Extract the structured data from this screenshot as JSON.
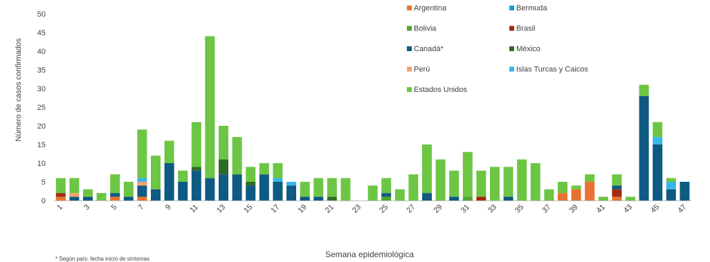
{
  "chart_data": {
    "type": "bar",
    "stacked": true,
    "title": "",
    "xlabel": "Semana epidemiológica",
    "ylabel": "Número de casos confirmados",
    "ylim": [
      0,
      50
    ],
    "yticks": [
      0,
      5,
      10,
      15,
      20,
      25,
      30,
      35,
      40,
      45,
      50
    ],
    "grid": false,
    "legend_position": "top-right",
    "categories": [
      1,
      2,
      3,
      4,
      5,
      6,
      7,
      8,
      9,
      10,
      11,
      12,
      13,
      14,
      15,
      16,
      17,
      18,
      19,
      20,
      21,
      22,
      23,
      24,
      25,
      26,
      27,
      28,
      29,
      30,
      31,
      32,
      33,
      34,
      35,
      36,
      37,
      38,
      39,
      40,
      41,
      42,
      43,
      44,
      45,
      46,
      47
    ],
    "xtick_labels": [
      "1",
      "3",
      "5",
      "7",
      "9",
      "11",
      "13",
      "15",
      "17",
      "19",
      "21",
      "23",
      "25",
      "27",
      "29",
      "31",
      "33",
      "35",
      "37",
      "39",
      "41",
      "43",
      "45",
      "47"
    ],
    "series": [
      {
        "name": "Argentina",
        "color": "#E97132",
        "values": [
          1,
          0,
          0,
          0,
          1,
          0,
          1,
          0,
          0,
          0,
          0,
          0,
          0,
          0,
          0,
          0,
          0,
          0,
          0,
          0,
          0,
          0,
          0,
          0,
          0,
          0,
          0,
          0,
          0,
          0,
          0,
          0,
          0,
          0,
          0,
          0,
          0,
          2,
          3,
          5,
          0,
          1,
          0,
          0,
          0,
          0,
          0
        ]
      },
      {
        "name": "Bermuda",
        "color": "#0F9ED5",
        "values": [
          0,
          0,
          0,
          0,
          0,
          0,
          0,
          0,
          0,
          0,
          0,
          0,
          0,
          0,
          0,
          0,
          0,
          0,
          0,
          0,
          0,
          0,
          0,
          0,
          0,
          0,
          0,
          0,
          0,
          0,
          0,
          0,
          0,
          0,
          0,
          0,
          0,
          0,
          0,
          0,
          0,
          0,
          0,
          0,
          0,
          0,
          0
        ]
      },
      {
        "name": "Bolivia",
        "color": "#4EA72E",
        "values": [
          0,
          0,
          0,
          0,
          0,
          0,
          0,
          0,
          0,
          0,
          0,
          0,
          0,
          0,
          0,
          0,
          0,
          0,
          0,
          0,
          0,
          0,
          0,
          0,
          1,
          0,
          0,
          0,
          0,
          0,
          1,
          0,
          0,
          0,
          0,
          0,
          0,
          0,
          0,
          0,
          0,
          0,
          0,
          0,
          0,
          0,
          0
        ]
      },
      {
        "name": "Brasil",
        "color": "#A02B0D",
        "values": [
          1,
          0,
          0,
          0,
          0,
          0,
          0,
          0,
          0,
          0,
          0,
          0,
          0,
          0,
          0,
          0,
          0,
          0,
          0,
          0,
          0,
          0,
          0,
          0,
          0,
          0,
          0,
          0,
          0,
          0,
          0,
          1,
          0,
          0,
          0,
          0,
          0,
          0,
          0,
          0,
          0,
          2,
          0,
          0,
          0,
          0,
          0
        ]
      },
      {
        "name": "Canadá*",
        "color": "#0E5A82",
        "values": [
          0,
          1,
          1,
          0,
          1,
          1,
          3,
          3,
          10,
          5,
          8,
          6,
          7,
          7,
          4,
          7,
          5,
          4,
          1,
          1,
          0,
          0,
          0,
          0,
          1,
          0,
          0,
          2,
          0,
          1,
          0,
          0,
          0,
          1,
          0,
          0,
          0,
          0,
          0,
          0,
          0,
          1,
          0,
          28,
          15,
          3,
          5
        ]
      },
      {
        "name": "México",
        "color": "#2F6C24",
        "values": [
          0,
          0,
          0,
          0,
          0,
          0,
          0,
          0,
          0,
          0,
          1,
          0,
          4,
          0,
          1,
          0,
          0,
          0,
          0,
          0,
          1,
          0,
          0,
          0,
          0,
          0,
          0,
          0,
          0,
          0,
          0,
          0,
          0,
          0,
          0,
          0,
          0,
          0,
          0,
          0,
          0,
          0,
          0,
          0,
          0,
          0,
          0
        ]
      },
      {
        "name": "Perú",
        "color": "#F4A06E",
        "values": [
          0,
          1,
          0,
          0,
          0,
          0,
          1,
          0,
          0,
          0,
          0,
          0,
          0,
          0,
          0,
          0,
          0,
          0,
          0,
          0,
          0,
          0,
          0,
          0,
          0,
          0,
          0,
          0,
          0,
          0,
          0,
          0,
          0,
          0,
          0,
          0,
          0,
          0,
          0,
          0,
          0,
          0,
          0,
          0,
          0,
          0,
          0
        ]
      },
      {
        "name": "Islas Turcas y Caicos",
        "color": "#37B6E9",
        "values": [
          0,
          0,
          0,
          0,
          0,
          0,
          1,
          0,
          0,
          0,
          0,
          0,
          0,
          0,
          0,
          0,
          1,
          1,
          0,
          0,
          0,
          0,
          0,
          0,
          0,
          0,
          0,
          0,
          0,
          0,
          0,
          0,
          0,
          0,
          0,
          0,
          0,
          0,
          0,
          0,
          0,
          0,
          0,
          0,
          2,
          2,
          0
        ]
      },
      {
        "name": "Estados Unidos",
        "color": "#6CC644",
        "values": [
          4,
          4,
          2,
          2,
          5,
          4,
          13,
          9,
          6,
          3,
          12,
          38,
          9,
          10,
          4,
          3,
          4,
          0,
          4,
          5,
          5,
          6,
          0,
          4,
          4,
          3,
          7,
          13,
          11,
          7,
          12,
          7,
          9,
          8,
          11,
          10,
          3,
          3,
          1,
          2,
          1,
          3,
          1,
          3,
          4,
          1,
          0
        ]
      }
    ]
  },
  "footnote": "* Según país: fecha inicio de síntomas"
}
